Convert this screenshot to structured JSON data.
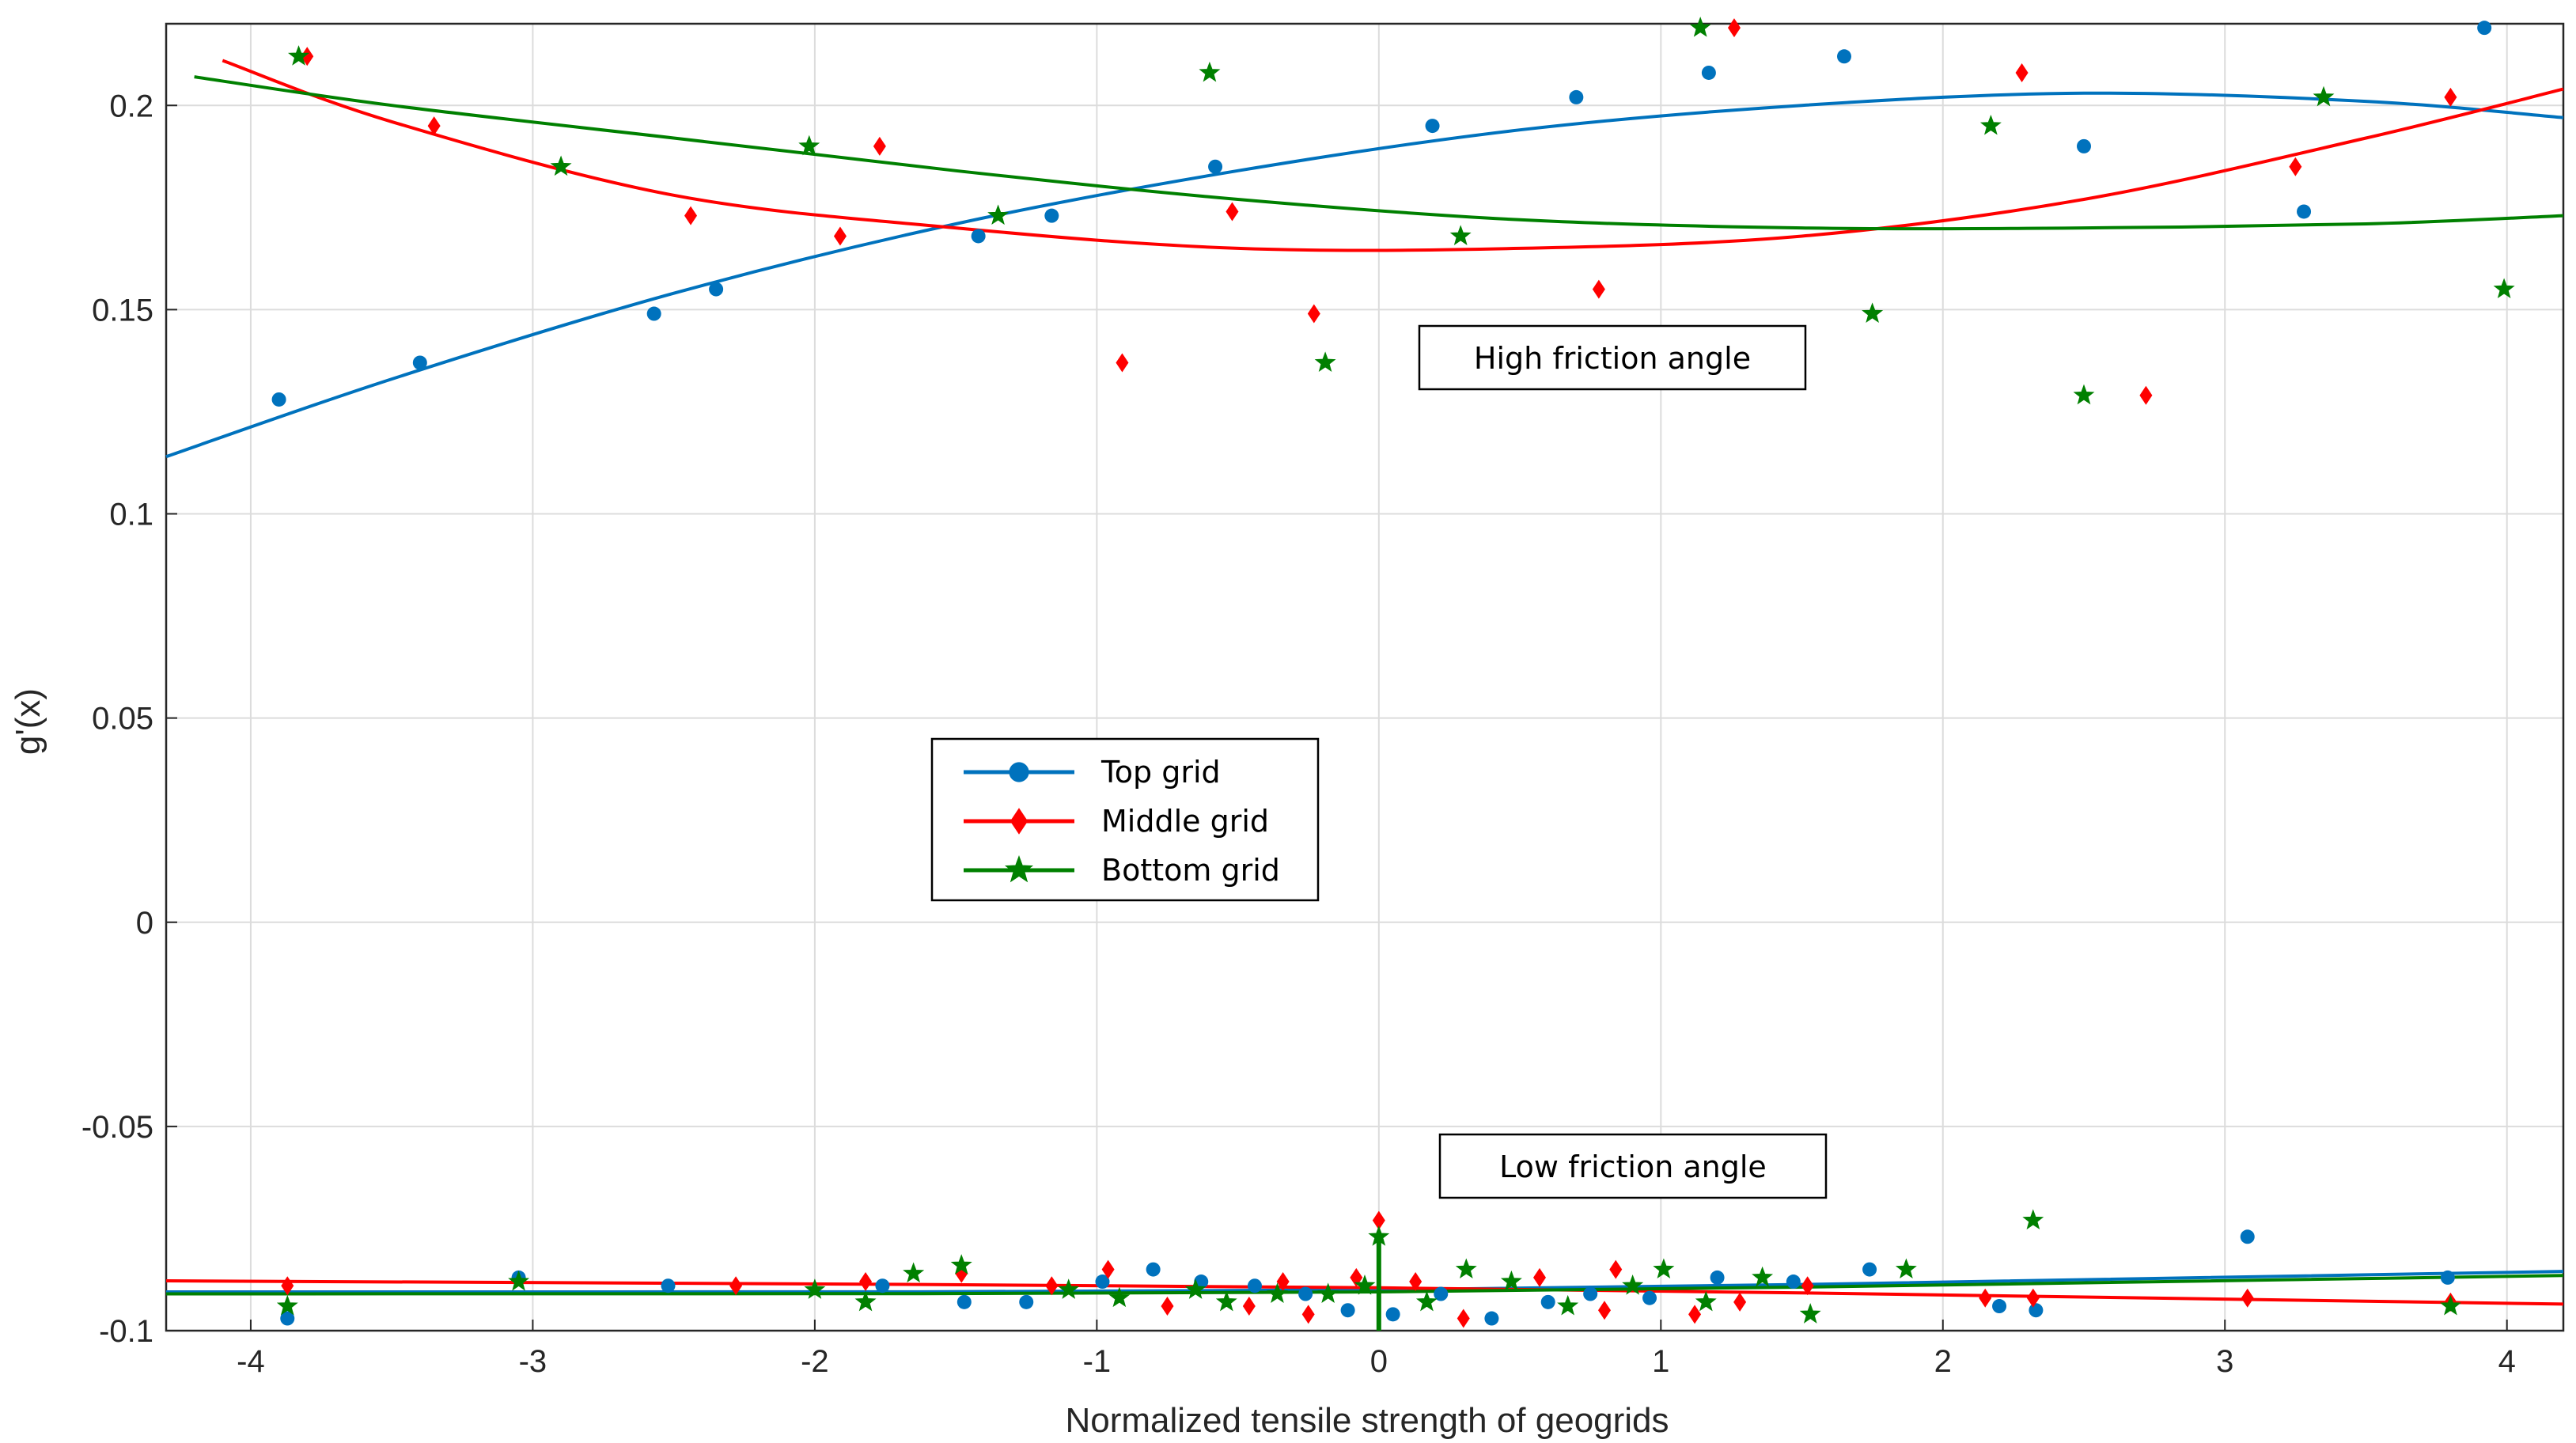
{
  "chart_data": {
    "type": "scatter",
    "title": "",
    "xlabel": "Normalized tensile strength of geogrids",
    "ylabel": "g'(x)",
    "xlim": [
      -4.3,
      4.2
    ],
    "ylim": [
      -0.1,
      0.22
    ],
    "grid": true,
    "xticks": [
      -4,
      -3,
      -2,
      -1,
      0,
      1,
      2,
      3,
      4
    ],
    "xtick_labels": [
      "-4",
      "-3",
      "-2",
      "-1",
      "0",
      "1",
      "2",
      "3",
      "4"
    ],
    "yticks": [
      -0.1,
      -0.05,
      0,
      0.05,
      0.1,
      0.15,
      0.2
    ],
    "ytick_labels": [
      "-0.1",
      "-0.05",
      "0",
      "0.05",
      "0.1",
      "0.15",
      "0.2"
    ],
    "legend_position": "center-left",
    "annotations": [
      {
        "text": "High friction angle",
        "x": 0.88,
        "y": 0.139
      },
      {
        "text": "Low friction angle",
        "x": 0.95,
        "y": -0.062
      }
    ],
    "series": [
      {
        "name": "Top grid",
        "color": "#0072BD",
        "marker": "circle",
        "points": [
          [
            -3.9,
            0.128
          ],
          [
            -3.4,
            0.137
          ],
          [
            -2.57,
            0.149
          ],
          [
            -2.35,
            0.155
          ],
          [
            -1.42,
            0.168
          ],
          [
            -1.16,
            0.173
          ],
          [
            -0.58,
            0.185
          ],
          [
            0.19,
            0.195
          ],
          [
            0.7,
            0.202
          ],
          [
            1.17,
            0.208
          ],
          [
            1.65,
            0.212
          ],
          [
            2.5,
            0.19
          ],
          [
            3.28,
            0.174
          ],
          [
            3.92,
            0.219
          ],
          [
            -3.87,
            -0.097
          ],
          [
            -3.05,
            -0.087
          ],
          [
            -2.52,
            -0.089
          ],
          [
            -1.76,
            -0.089
          ],
          [
            -1.47,
            -0.093
          ],
          [
            -1.25,
            -0.093
          ],
          [
            -0.98,
            -0.088
          ],
          [
            -0.8,
            -0.085
          ],
          [
            -0.63,
            -0.088
          ],
          [
            -0.44,
            -0.089
          ],
          [
            -0.26,
            -0.091
          ],
          [
            -0.11,
            -0.095
          ],
          [
            0.05,
            -0.096
          ],
          [
            0.22,
            -0.091
          ],
          [
            0.4,
            -0.097
          ],
          [
            0.6,
            -0.093
          ],
          [
            0.75,
            -0.091
          ],
          [
            0.96,
            -0.092
          ],
          [
            1.2,
            -0.087
          ],
          [
            1.47,
            -0.088
          ],
          [
            1.74,
            -0.085
          ],
          [
            2.2,
            -0.094
          ],
          [
            2.33,
            -0.095
          ],
          [
            3.08,
            -0.077
          ],
          [
            3.79,
            -0.087
          ]
        ],
        "curve": [
          [
            -4.3,
            0.114
          ],
          [
            -3.5,
            0.133
          ],
          [
            -2.5,
            0.154
          ],
          [
            -1.5,
            0.171
          ],
          [
            -0.5,
            0.184
          ],
          [
            0.5,
            0.194
          ],
          [
            1.5,
            0.2
          ],
          [
            2.5,
            0.203
          ],
          [
            3.5,
            0.201
          ],
          [
            4.2,
            0.197
          ],
          [
            -4.3,
            -0.0905
          ],
          [
            0,
            -0.09
          ],
          [
            4.2,
            -0.0855
          ]
        ]
      },
      {
        "name": "Middle grid",
        "color": "#FF0000",
        "marker": "diamond",
        "points": [
          [
            -3.8,
            0.212
          ],
          [
            -3.35,
            0.195
          ],
          [
            -2.44,
            0.173
          ],
          [
            -1.91,
            0.168
          ],
          [
            -1.77,
            0.19
          ],
          [
            -0.91,
            0.137
          ],
          [
            -0.52,
            0.174
          ],
          [
            -0.23,
            0.149
          ],
          [
            0.78,
            0.155
          ],
          [
            1.26,
            0.219
          ],
          [
            2.28,
            0.208
          ],
          [
            2.72,
            0.129
          ],
          [
            3.25,
            0.185
          ],
          [
            3.8,
            0.202
          ],
          [
            -3.87,
            -0.089
          ],
          [
            -2.28,
            -0.089
          ],
          [
            -1.82,
            -0.088
          ],
          [
            -1.48,
            -0.086
          ],
          [
            -1.16,
            -0.089
          ],
          [
            -0.96,
            -0.085
          ],
          [
            -0.75,
            -0.094
          ],
          [
            -0.46,
            -0.094
          ],
          [
            -0.34,
            -0.088
          ],
          [
            -0.25,
            -0.096
          ],
          [
            -0.08,
            -0.087
          ],
          [
            0,
            -0.073
          ],
          [
            0.13,
            -0.088
          ],
          [
            0.3,
            -0.097
          ],
          [
            0.57,
            -0.087
          ],
          [
            0.8,
            -0.095
          ],
          [
            0.84,
            -0.085
          ],
          [
            1.12,
            -0.096
          ],
          [
            1.28,
            -0.093
          ],
          [
            1.52,
            -0.089
          ],
          [
            2.15,
            -0.092
          ],
          [
            2.32,
            -0.092
          ],
          [
            3.08,
            -0.092
          ],
          [
            3.8,
            -0.093
          ]
        ],
        "curve": [
          [
            -4.1,
            0.211
          ],
          [
            -3.5,
            0.196
          ],
          [
            -2.5,
            0.178
          ],
          [
            -1.5,
            0.17
          ],
          [
            -0.5,
            0.165
          ],
          [
            0.5,
            0.165
          ],
          [
            1.5,
            0.168
          ],
          [
            2.5,
            0.177
          ],
          [
            3.5,
            0.192
          ],
          [
            4.2,
            0.204
          ],
          [
            -4.3,
            -0.0878
          ],
          [
            0,
            -0.0895
          ],
          [
            4.2,
            -0.0935
          ]
        ]
      },
      {
        "name": "Bottom grid",
        "color": "#008000",
        "marker": "star",
        "points": [
          [
            -3.83,
            0.212
          ],
          [
            -2.9,
            0.185
          ],
          [
            -2.02,
            0.19
          ],
          [
            -1.35,
            0.173
          ],
          [
            -0.6,
            0.208
          ],
          [
            -0.19,
            0.137
          ],
          [
            0.29,
            0.168
          ],
          [
            1.14,
            0.219
          ],
          [
            1.75,
            0.149
          ],
          [
            2.17,
            0.195
          ],
          [
            2.5,
            0.129
          ],
          [
            3.35,
            0.202
          ],
          [
            3.99,
            0.155
          ],
          [
            -3.87,
            -0.094
          ],
          [
            -3.05,
            -0.088
          ],
          [
            -2.0,
            -0.09
          ],
          [
            -1.82,
            -0.093
          ],
          [
            -1.65,
            -0.086
          ],
          [
            -1.48,
            -0.084
          ],
          [
            -1.1,
            -0.09
          ],
          [
            -0.92,
            -0.092
          ],
          [
            -0.65,
            -0.09
          ],
          [
            -0.54,
            -0.093
          ],
          [
            -0.36,
            -0.091
          ],
          [
            -0.18,
            -0.091
          ],
          [
            -0.05,
            -0.089
          ],
          [
            0,
            -0.077
          ],
          [
            0.17,
            -0.093
          ],
          [
            0.31,
            -0.085
          ],
          [
            0.47,
            -0.088
          ],
          [
            0.67,
            -0.094
          ],
          [
            0.9,
            -0.089
          ],
          [
            1.01,
            -0.085
          ],
          [
            1.16,
            -0.093
          ],
          [
            1.36,
            -0.087
          ],
          [
            1.53,
            -0.096
          ],
          [
            1.87,
            -0.085
          ],
          [
            2.32,
            -0.073
          ],
          [
            3.8,
            -0.094
          ]
        ],
        "curve": [
          [
            -4.2,
            0.207
          ],
          [
            -3.5,
            0.2
          ],
          [
            -2.5,
            0.192
          ],
          [
            -1.5,
            0.184
          ],
          [
            -0.5,
            0.177
          ],
          [
            0.5,
            0.172
          ],
          [
            1.5,
            0.17
          ],
          [
            2.5,
            0.17
          ],
          [
            3.5,
            0.171
          ],
          [
            4.2,
            0.173
          ],
          [
            -4.3,
            -0.091
          ],
          [
            0,
            -0.0905
          ],
          [
            4.2,
            -0.0865
          ]
        ]
      }
    ]
  }
}
